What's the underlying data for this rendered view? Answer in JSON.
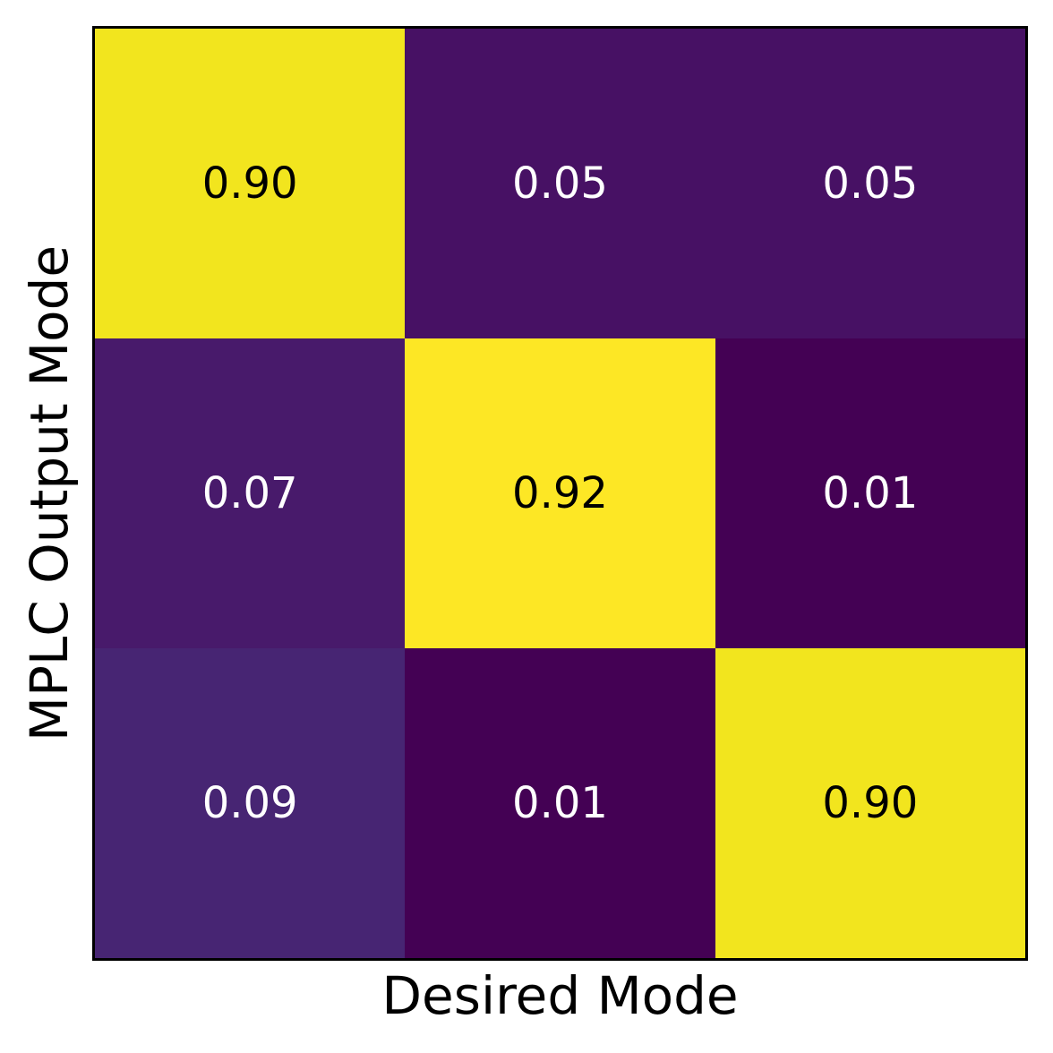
{
  "chart_data": {
    "type": "heatmap",
    "title": "",
    "xlabel": "Desired Mode",
    "ylabel": "MPLC Output Mode",
    "colormap": "viridis",
    "colorbar": false,
    "grid": false,
    "rows": 3,
    "cols": 3,
    "x_tick_labels": [],
    "y_tick_labels": [],
    "value_range": [
      0.01,
      0.92
    ],
    "matrix": [
      [
        0.9,
        0.05,
        0.05
      ],
      [
        0.07,
        0.92,
        0.01
      ],
      [
        0.09,
        0.01,
        0.9
      ]
    ],
    "cells": [
      {
        "row": 0,
        "col": 0,
        "label": "0.90",
        "bg": "#f2e51e",
        "fg": "#000000"
      },
      {
        "row": 0,
        "col": 1,
        "label": "0.05",
        "bg": "#471164",
        "fg": "#ffffff"
      },
      {
        "row": 0,
        "col": 2,
        "label": "0.05",
        "bg": "#471164",
        "fg": "#ffffff"
      },
      {
        "row": 1,
        "col": 0,
        "label": "0.07",
        "bg": "#481a6b",
        "fg": "#ffffff"
      },
      {
        "row": 1,
        "col": 1,
        "label": "0.92",
        "bg": "#fde725",
        "fg": "#000000"
      },
      {
        "row": 1,
        "col": 2,
        "label": "0.01",
        "bg": "#440154",
        "fg": "#ffffff"
      },
      {
        "row": 2,
        "col": 0,
        "label": "0.09",
        "bg": "#472573",
        "fg": "#ffffff"
      },
      {
        "row": 2,
        "col": 1,
        "label": "0.01",
        "bg": "#440154",
        "fg": "#ffffff"
      },
      {
        "row": 2,
        "col": 2,
        "label": "0.90",
        "bg": "#f2e51e",
        "fg": "#000000"
      }
    ],
    "border_color": "#000000"
  }
}
